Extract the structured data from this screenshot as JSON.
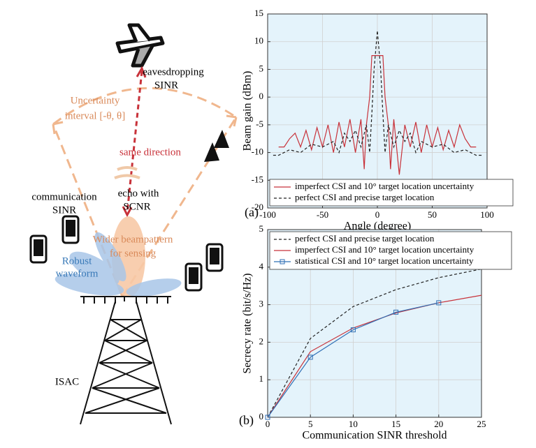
{
  "diagram": {
    "labels": {
      "eavesdropping": "eavesdropping",
      "eaves_sinr": "SINR",
      "uncertainty1": "Uncertainty",
      "uncertainty2": "interval [-θ, θ]",
      "same": "same direction",
      "echo1": "echo with",
      "echo2": "SCNR",
      "comm1": "communication",
      "comm2": "SINR",
      "wider1": "Wider beampattern",
      "wider2": "for sensing",
      "robust1": "Robust",
      "robust2": "waveform",
      "isac": "ISAC"
    }
  },
  "chart_data": [
    {
      "type": "line",
      "panel": "(a)",
      "xlabel": "Angle (degree)",
      "ylabel": "Beam gain (dBm)",
      "xlim": [
        -100,
        100
      ],
      "xticks": [
        -100,
        -50,
        0,
        50,
        100
      ],
      "ylim": [
        -20,
        15
      ],
      "yticks": [
        -20,
        -15,
        -10,
        -5,
        0,
        5,
        10,
        15
      ],
      "grid": true,
      "legend": "lower-left",
      "background": "#e4f3fb",
      "series": [
        {
          "name": "imperfect CSI and 10° target location uncertainty",
          "color": "#c8323a",
          "dash": false,
          "x": [
            -90,
            -85,
            -80,
            -75,
            -70,
            -65,
            -60,
            -55,
            -50,
            -45,
            -40,
            -35,
            -30,
            -25,
            -20,
            -15,
            -12,
            -10,
            -7,
            -5,
            0,
            5,
            7,
            10,
            12,
            15,
            20,
            25,
            30,
            35,
            40,
            45,
            50,
            55,
            60,
            65,
            70,
            75,
            80,
            85,
            90
          ],
          "values": [
            -9,
            -9,
            -7.5,
            -6.5,
            -9,
            -6,
            -9.5,
            -5.5,
            -9,
            -5,
            -10,
            -4.5,
            -9,
            -4,
            -10,
            -4,
            -13,
            -5,
            0,
            7.5,
            7.5,
            7.5,
            0,
            -5,
            -13,
            -4,
            -14,
            -5,
            -9,
            -4.5,
            -10,
            -5,
            -9,
            -5.5,
            -9.5,
            -6,
            -9,
            -5,
            -7.5,
            -9,
            -9
          ]
        },
        {
          "name": "perfect CSI and precise target location",
          "color": "#222222",
          "dash": true,
          "x": [
            -95,
            -90,
            -80,
            -70,
            -60,
            -50,
            -40,
            -35,
            -30,
            -25,
            -20,
            -15,
            -10,
            -7,
            -5,
            -3,
            0,
            3,
            5,
            7,
            10,
            15,
            20,
            25,
            30,
            35,
            40,
            50,
            60,
            70,
            80,
            90,
            95
          ],
          "values": [
            -10.5,
            -10.5,
            -9.5,
            -10,
            -8.5,
            -9,
            -8,
            -10,
            -6.5,
            -8,
            -6,
            -9,
            -5,
            -10,
            -3,
            5,
            12,
            5,
            -3,
            -10,
            -5,
            -9,
            -6,
            -8,
            -6.5,
            -10,
            -8,
            -9,
            -8.5,
            -10,
            -9.5,
            -10.5,
            -10.5
          ]
        }
      ]
    },
    {
      "type": "line",
      "panel": "(b)",
      "xlabel": "Communication SINR threshold",
      "ylabel": "Secrecy rate (bit/s/Hz)",
      "xlim": [
        0,
        25
      ],
      "xticks": [
        0,
        5,
        10,
        15,
        20,
        25
      ],
      "ylim": [
        0,
        5
      ],
      "yticks": [
        0,
        1,
        2,
        3,
        4,
        5
      ],
      "grid": true,
      "legend": "upper-left",
      "background": "#e4f3fb",
      "series": [
        {
          "name": "perfect CSI and precise target location",
          "color": "#222222",
          "dash": true,
          "x": [
            0,
            5,
            10,
            15,
            20,
            25
          ],
          "values": [
            0,
            2.1,
            2.95,
            3.4,
            3.72,
            3.95
          ]
        },
        {
          "name": "imperfect CSI and 10° target location uncertainty",
          "color": "#c8323a",
          "dash": false,
          "x": [
            0,
            5,
            10,
            15,
            20,
            25
          ],
          "values": [
            0,
            1.75,
            2.38,
            2.78,
            3.05,
            3.25
          ]
        },
        {
          "name": "statistical CSI and 10° target location uncertainty",
          "color": "#2f6fb5",
          "dash": false,
          "marker": "square",
          "x": [
            0,
            5,
            10,
            15,
            20
          ],
          "values": [
            0,
            1.6,
            2.33,
            2.8,
            3.05
          ]
        }
      ]
    }
  ]
}
